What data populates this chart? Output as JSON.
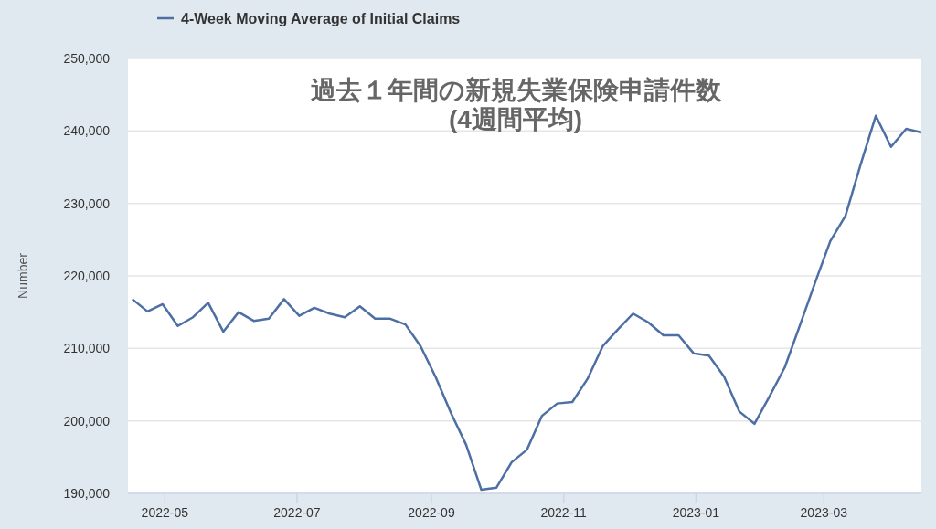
{
  "chart_data": {
    "type": "line",
    "title": "過去１年間の新規失業保険申請件数\n(4週間平均)",
    "ylabel": "Number",
    "x": [
      "2022-04-16",
      "2022-04-23",
      "2022-04-30",
      "2022-05-07",
      "2022-05-14",
      "2022-05-21",
      "2022-05-28",
      "2022-06-04",
      "2022-06-11",
      "2022-06-18",
      "2022-06-25",
      "2022-07-02",
      "2022-07-09",
      "2022-07-16",
      "2022-07-23",
      "2022-07-30",
      "2022-08-06",
      "2022-08-13",
      "2022-08-20",
      "2022-08-27",
      "2022-09-03",
      "2022-09-10",
      "2022-09-17",
      "2022-09-24",
      "2022-10-01",
      "2022-10-08",
      "2022-10-15",
      "2022-10-22",
      "2022-10-29",
      "2022-11-05",
      "2022-11-12",
      "2022-11-19",
      "2022-11-26",
      "2022-12-03",
      "2022-12-10",
      "2022-12-17",
      "2022-12-24",
      "2022-12-31",
      "2023-01-07",
      "2023-01-14",
      "2023-01-21",
      "2023-01-28",
      "2023-02-04",
      "2023-02-11",
      "2023-02-18",
      "2023-02-25",
      "2023-03-04",
      "2023-03-11",
      "2023-03-18",
      "2023-03-25",
      "2023-04-01",
      "2023-04-08",
      "2023-04-15"
    ],
    "series": [
      {
        "name": "4-Week Moving Average of Initial Claims",
        "color": "#4e6fa3",
        "values": [
          216800,
          215100,
          216100,
          213100,
          214300,
          216300,
          212300,
          215000,
          213800,
          214100,
          216800,
          214500,
          215600,
          214800,
          214300,
          215800,
          214100,
          214100,
          213300,
          210300,
          206000,
          201100,
          196700,
          190500,
          190800,
          194300,
          196000,
          200700,
          202400,
          202600,
          205800,
          210300,
          212600,
          214800,
          213600,
          211800,
          211800,
          209300,
          209000,
          206100,
          201300,
          199600,
          203400,
          207400,
          213200,
          219100,
          224800,
          228300,
          235400,
          242100,
          237800,
          240300,
          239800
        ]
      }
    ],
    "xlim": [
      "2022-04-14",
      "2023-04-15"
    ],
    "xticks": [
      {
        "value": "2022-05-01",
        "label": "2022-05"
      },
      {
        "value": "2022-07-01",
        "label": "2022-07"
      },
      {
        "value": "2022-09-01",
        "label": "2022-09"
      },
      {
        "value": "2022-11-01",
        "label": "2022-11"
      },
      {
        "value": "2023-01-01",
        "label": "2023-01"
      },
      {
        "value": "2023-03-01",
        "label": "2023-03"
      }
    ],
    "ylim": [
      190000,
      250000
    ],
    "yticks": [
      {
        "value": 190000,
        "label": "190,000"
      },
      {
        "value": 200000,
        "label": "200,000"
      },
      {
        "value": 210000,
        "label": "210,000"
      },
      {
        "value": 220000,
        "label": "220,000"
      },
      {
        "value": 230000,
        "label": "230,000"
      },
      {
        "value": 240000,
        "label": "240,000"
      },
      {
        "value": 250000,
        "label": "250,000"
      }
    ],
    "grid": "y",
    "legend": "top left",
    "line_style": "solid",
    "marker": "none"
  }
}
